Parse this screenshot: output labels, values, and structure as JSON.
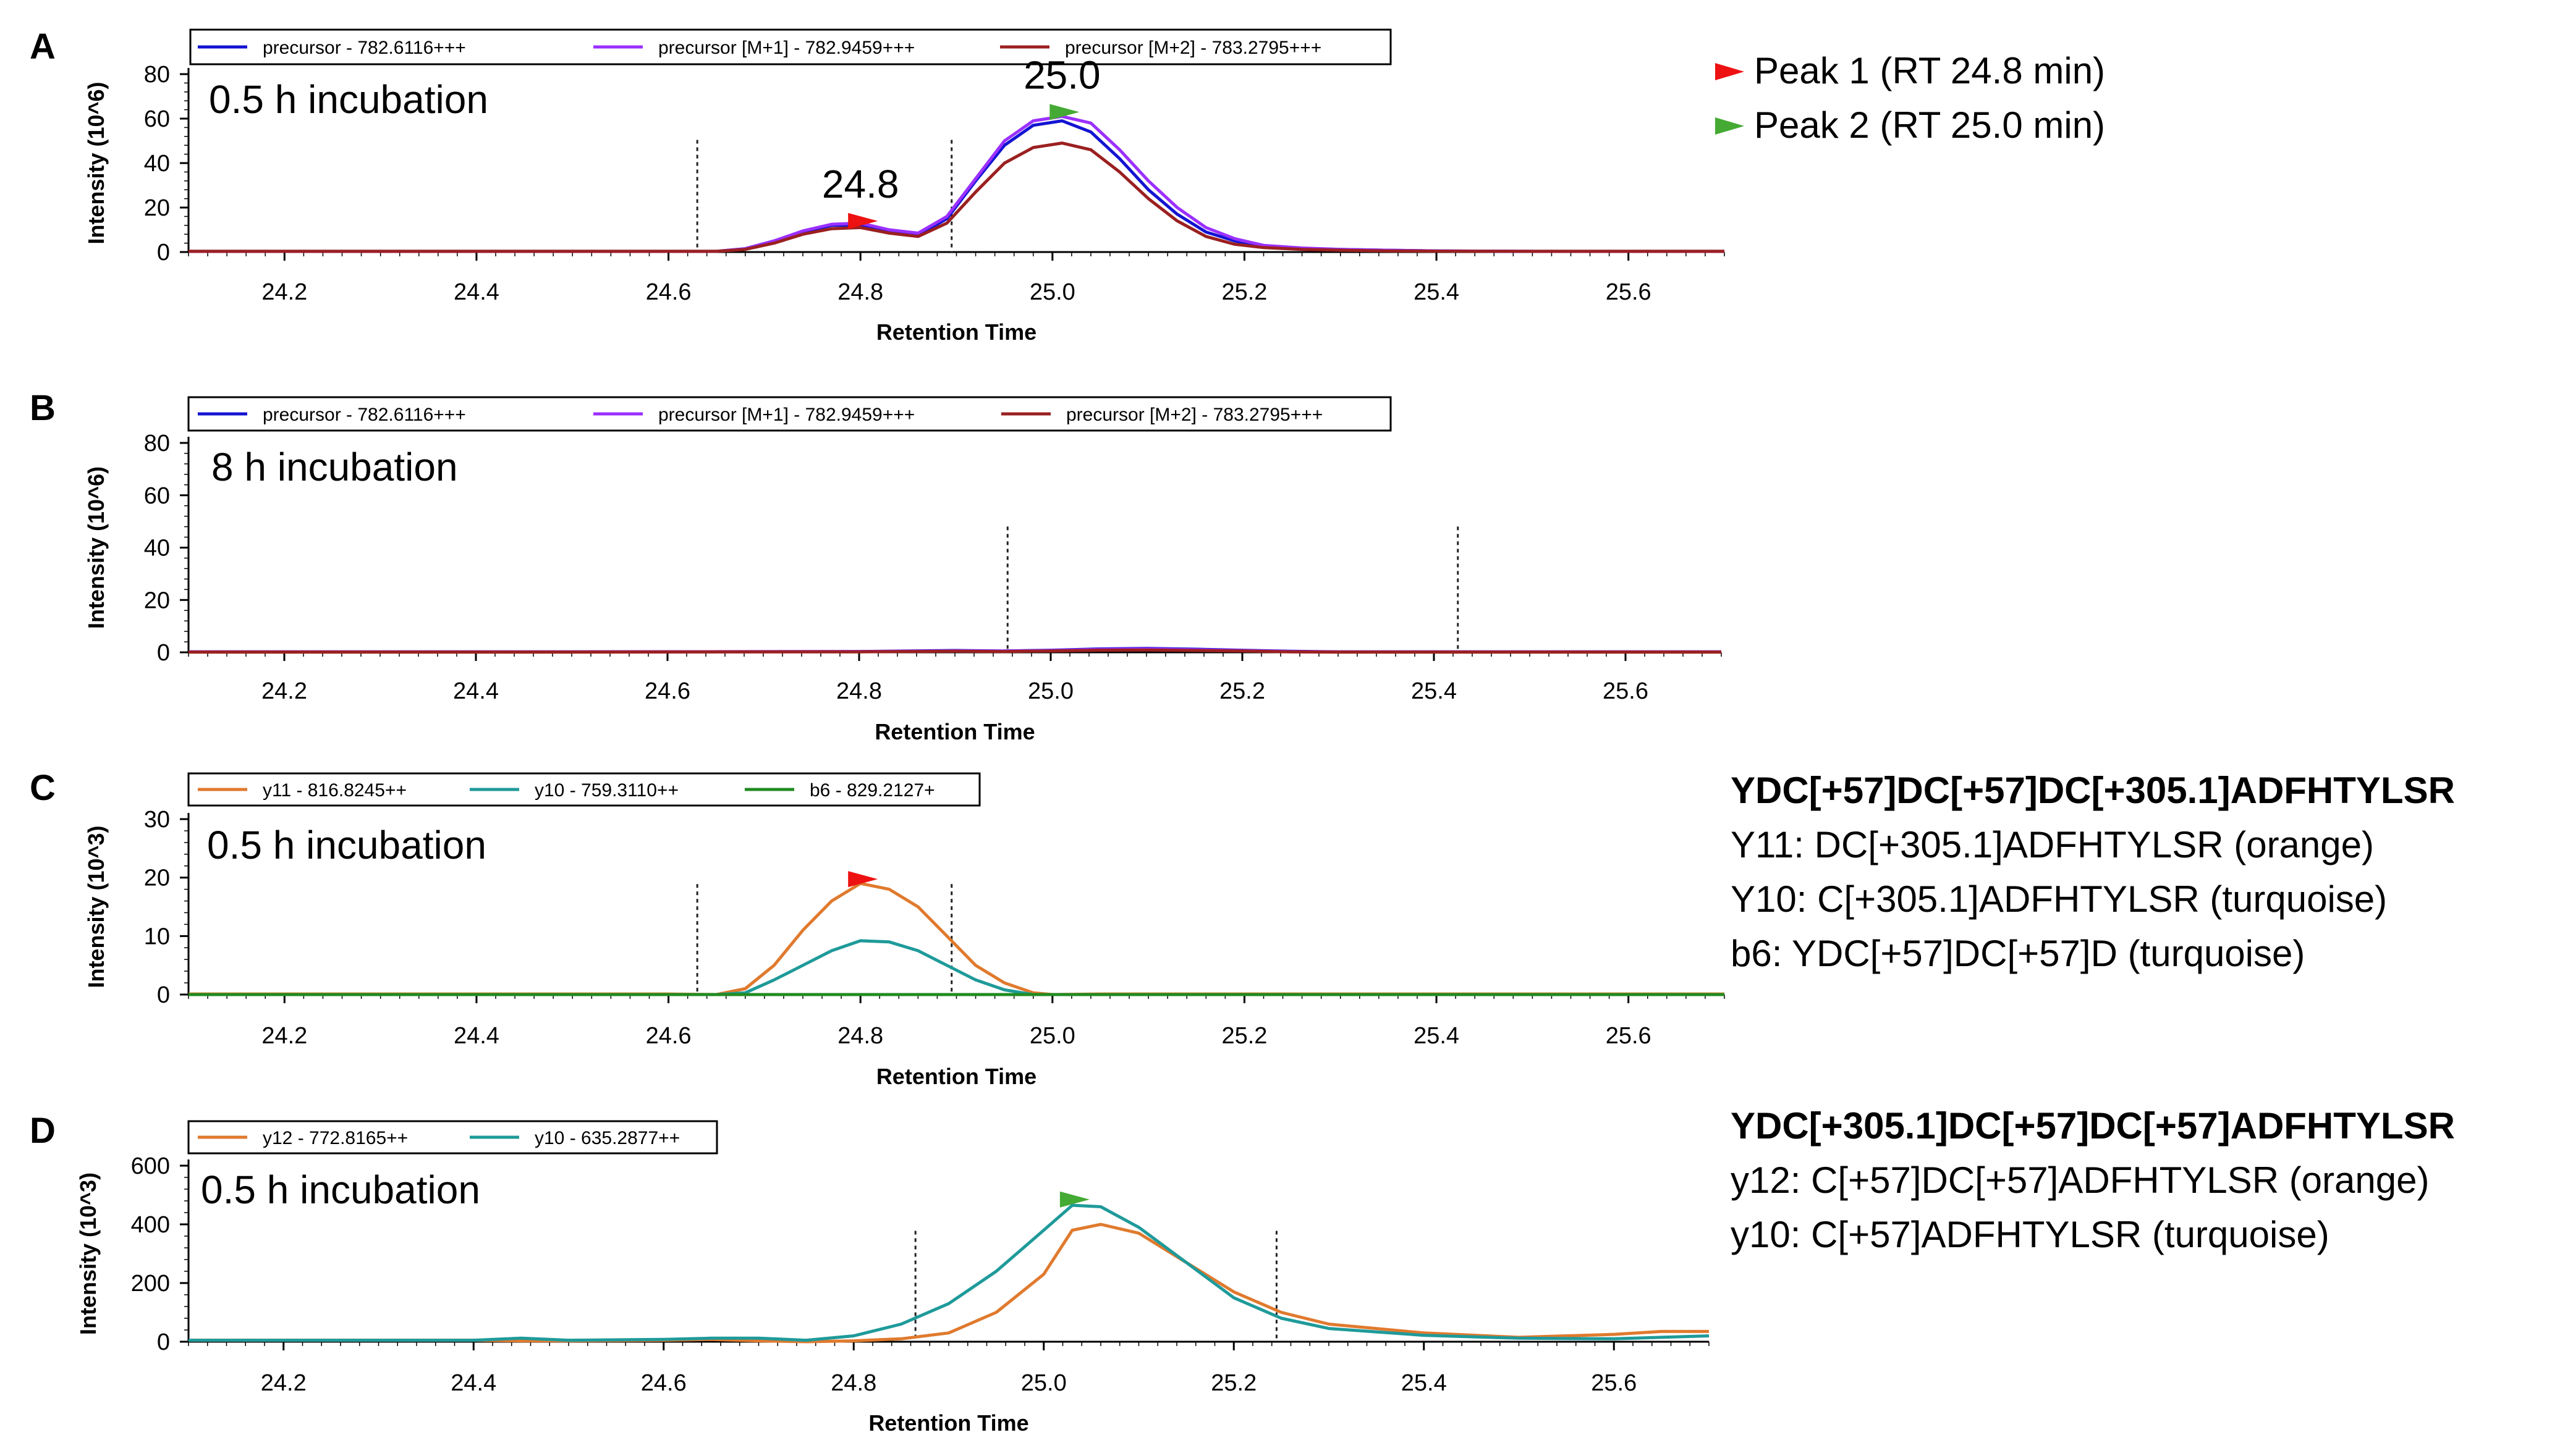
{
  "panel_legend": {
    "peak1": {
      "label": "Peak 1 (RT 24.8 min)",
      "color": "#ee1111"
    },
    "peak2": {
      "label": "Peak 2 (RT 25.0 min)",
      "color": "#44aa33"
    }
  },
  "side_notes": {
    "C": {
      "title": "YDC[+57]DC[+57]DC[+305.1]ADFHTYLSR",
      "lines": [
        "Y11: DC[+305.1]ADFHTYLSR (orange)",
        "Y10: C[+305.1]ADFHTYLSR (turquoise)",
        "b6: YDC[+57]DC[+57]D (turquoise)"
      ]
    },
    "D": {
      "title": "YDC[+305.1]DC[+57]DC[+57]ADFHTYLSR",
      "lines": [
        "y12: C[+57]DC[+57]ADFHTYLSR (orange)",
        "y10: C[+57]ADFHTYLSR (turquoise)"
      ]
    }
  },
  "chart_data": [
    {
      "panel": "A",
      "type": "line",
      "title": "0.5 h incubation",
      "xlabel": "Retention Time",
      "ylabel": "Intensity (10^6)",
      "xlim": [
        24.1,
        25.7
      ],
      "ylim": [
        0,
        80
      ],
      "xticks": [
        "24.2",
        "24.4",
        "24.6",
        "24.8",
        "25.0",
        "25.2",
        "25.4",
        "25.6"
      ],
      "yticks": [
        "0",
        "20",
        "40",
        "60",
        "80"
      ],
      "legend": [
        {
          "name": "precursor - 782.6116+++",
          "color": "#1414d2"
        },
        {
          "name": "precursor [M+1] - 782.9459+++",
          "color": "#9b30ff"
        },
        {
          "name": "precursor [M+2] - 783.2795+++",
          "color": "#9b2020"
        }
      ],
      "boundaries": [
        24.63,
        24.895
      ],
      "peak_labels": [
        {
          "text": "24.8",
          "x": 24.8,
          "y": 12,
          "marker": "peak1"
        },
        {
          "text": "25.0",
          "x": 25.01,
          "y": 61,
          "marker": "peak2"
        }
      ],
      "x": [
        24.1,
        24.4,
        24.6,
        24.65,
        24.68,
        24.71,
        24.74,
        24.77,
        24.8,
        24.83,
        24.86,
        24.89,
        24.92,
        24.95,
        24.98,
        25.01,
        25.04,
        25.07,
        25.1,
        25.13,
        25.16,
        25.19,
        25.22,
        25.26,
        25.3,
        25.35,
        25.4,
        25.5,
        25.7
      ],
      "series": [
        {
          "name": "precursor - 782.6116+++",
          "color": "#1414d2",
          "values": [
            0.3,
            0.3,
            0.3,
            0.3,
            1.5,
            5,
            9,
            12,
            12,
            9,
            7.5,
            15,
            32,
            48,
            57,
            59,
            54,
            42,
            28,
            17,
            9,
            5,
            2.5,
            1.5,
            1.2,
            0.8,
            0.5,
            0.3,
            0.3
          ]
        },
        {
          "name": "precursor [M+1] - 782.9459+++",
          "color": "#9b30ff",
          "values": [
            0.3,
            0.3,
            0.3,
            0.3,
            1.5,
            5,
            9.5,
            12.5,
            13,
            10,
            8.5,
            16,
            33,
            50,
            59,
            61,
            58,
            46,
            32,
            20,
            11,
            6,
            3,
            1.8,
            1.2,
            0.8,
            0.5,
            0.3,
            0.3
          ]
        },
        {
          "name": "precursor [M+2] - 783.2795+++",
          "color": "#9b2020",
          "values": [
            0.3,
            0.3,
            0.3,
            0.3,
            1.2,
            4,
            8,
            10.5,
            11,
            8.5,
            7,
            13,
            27,
            40,
            47,
            49,
            46,
            36,
            24,
            14,
            7,
            3.5,
            2,
            1.2,
            0.8,
            0.5,
            0.4,
            0.3,
            0.3
          ]
        }
      ]
    },
    {
      "panel": "B",
      "type": "line",
      "title": "8 h incubation",
      "xlabel": "Retention Time",
      "ylabel": "Intensity (10^6)",
      "xlim": [
        24.1,
        25.7
      ],
      "ylim": [
        0,
        80
      ],
      "xticks": [
        "24.2",
        "24.4",
        "24.6",
        "24.8",
        "25.0",
        "25.2",
        "25.4",
        "25.6"
      ],
      "yticks": [
        "0",
        "20",
        "40",
        "60",
        "80"
      ],
      "legend": [
        {
          "name": "precursor - 782.6116+++",
          "color": "#1414d2"
        },
        {
          "name": "precursor [M+1] - 782.9459+++",
          "color": "#9b30ff"
        },
        {
          "name": "precursor [M+2] - 783.2795+++",
          "color": "#9b2020"
        }
      ],
      "boundaries": [
        24.955,
        25.425
      ],
      "peak_labels": [],
      "x": [
        24.1,
        24.5,
        24.8,
        24.85,
        24.9,
        24.95,
        25.0,
        25.05,
        25.1,
        25.15,
        25.2,
        25.25,
        25.3,
        25.4,
        25.7
      ],
      "series": [
        {
          "name": "precursor - 782.6116+++",
          "color": "#1414d2",
          "values": [
            0.2,
            0.2,
            0.3,
            0.5,
            0.7,
            0.5,
            0.8,
            1.3,
            1.5,
            1.2,
            0.8,
            0.4,
            0.2,
            0.2,
            0.2
          ]
        },
        {
          "name": "precursor [M+1] - 782.9459+++",
          "color": "#9b30ff",
          "values": [
            0.2,
            0.2,
            0.3,
            0.4,
            0.6,
            0.5,
            0.7,
            1.1,
            1.3,
            1.0,
            0.7,
            0.3,
            0.2,
            0.2,
            0.2
          ]
        },
        {
          "name": "precursor [M+2] - 783.2795+++",
          "color": "#9b2020",
          "values": [
            0.1,
            0.1,
            0.2,
            0.3,
            0.4,
            0.3,
            0.5,
            0.8,
            0.9,
            0.7,
            0.5,
            0.2,
            0.1,
            0.1,
            0.1
          ]
        }
      ]
    },
    {
      "panel": "C",
      "type": "line",
      "title": "0.5 h incubation",
      "xlabel": "Retention Time",
      "ylabel": "Intensity (10^3)",
      "xlim": [
        24.1,
        25.7
      ],
      "ylim": [
        0,
        30
      ],
      "xticks": [
        "24.2",
        "24.4",
        "24.6",
        "24.8",
        "25.0",
        "25.2",
        "25.4",
        "25.6"
      ],
      "yticks": [
        "0",
        "10",
        "20",
        "30"
      ],
      "legend": [
        {
          "name": "y11 - 816.8245++",
          "color": "#e07a2e"
        },
        {
          "name": "y10 - 759.3110++",
          "color": "#1f9a9a"
        },
        {
          "name": "b6 - 829.2127+",
          "color": "#228b22"
        }
      ],
      "boundaries": [
        24.63,
        24.895
      ],
      "peak_labels": [
        {
          "text": "",
          "x": 24.8,
          "y": 19,
          "marker": "peak1"
        }
      ],
      "x": [
        24.1,
        24.6,
        24.65,
        24.68,
        24.71,
        24.74,
        24.77,
        24.8,
        24.83,
        24.86,
        24.89,
        24.92,
        24.95,
        24.98,
        25.0,
        25.05,
        25.7
      ],
      "series": [
        {
          "name": "y11 - 816.8245++",
          "color": "#e07a2e",
          "values": [
            0.1,
            0.1,
            0,
            1,
            5,
            11,
            16,
            19,
            18,
            15,
            10,
            5,
            2,
            0.3,
            0,
            0.1,
            0.1
          ]
        },
        {
          "name": "y10 - 759.3110++",
          "color": "#1f9a9a",
          "values": [
            0,
            0,
            0,
            0.3,
            2.5,
            5,
            7.5,
            9.2,
            9,
            7.5,
            5,
            2.5,
            0.8,
            0,
            0,
            0,
            0
          ]
        },
        {
          "name": "b6 - 829.2127+",
          "color": "#228b22",
          "values": [
            0,
            0,
            0,
            0,
            0,
            0,
            0,
            0,
            0,
            0,
            0,
            0,
            0,
            0,
            0,
            0,
            0
          ]
        }
      ]
    },
    {
      "panel": "D",
      "type": "line",
      "title": "0.5 h incubation",
      "xlabel": "Retention Time",
      "ylabel": "Intensity (10^3)",
      "xlim": [
        24.1,
        25.7
      ],
      "ylim": [
        0,
        600
      ],
      "xticks": [
        "24.2",
        "24.4",
        "24.6",
        "24.8",
        "25.0",
        "25.2",
        "25.4",
        "25.6"
      ],
      "yticks": [
        "0",
        "200",
        "400",
        "600"
      ],
      "legend": [
        {
          "name": "y12 - 772.8165++",
          "color": "#e07a2e"
        },
        {
          "name": "y10 - 635.2877++",
          "color": "#1f9a9a"
        }
      ],
      "boundaries": [
        24.865,
        25.245
      ],
      "peak_labels": [
        {
          "text": "",
          "x": 25.03,
          "y": 470,
          "marker": "peak2"
        }
      ],
      "x": [
        24.1,
        24.4,
        24.45,
        24.5,
        24.6,
        24.65,
        24.7,
        24.75,
        24.8,
        24.85,
        24.9,
        24.95,
        25.0,
        25.03,
        25.06,
        25.1,
        25.15,
        25.2,
        25.25,
        25.3,
        25.4,
        25.5,
        25.6,
        25.65,
        25.7
      ],
      "series": [
        {
          "name": "y12 - 772.8165++",
          "color": "#e07a2e",
          "values": [
            5,
            5,
            3,
            3,
            5,
            8,
            3,
            0,
            3,
            10,
            30,
            100,
            230,
            380,
            400,
            370,
            270,
            170,
            100,
            60,
            30,
            15,
            25,
            35,
            35
          ]
        },
        {
          "name": "y10 - 635.2877++",
          "color": "#1f9a9a",
          "values": [
            5,
            5,
            12,
            5,
            8,
            12,
            12,
            5,
            20,
            60,
            130,
            240,
            380,
            465,
            460,
            390,
            270,
            150,
            80,
            45,
            22,
            12,
            10,
            15,
            20
          ]
        }
      ]
    }
  ]
}
